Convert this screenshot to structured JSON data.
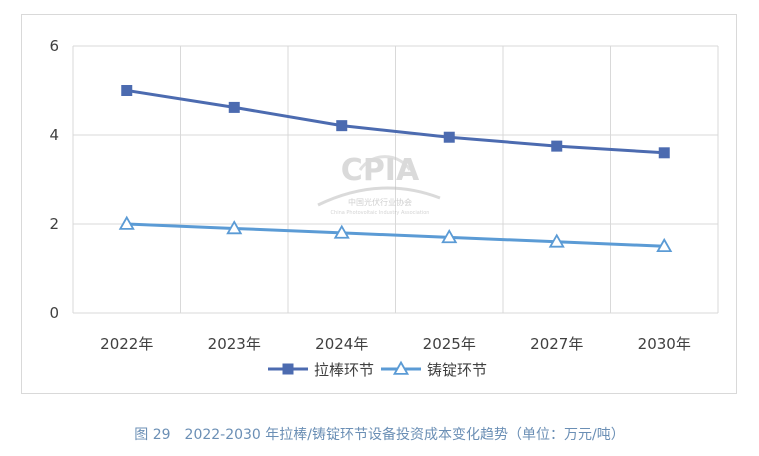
{
  "chart_data": {
    "type": "line",
    "categories": [
      "2022年",
      "2023年",
      "2024年",
      "2025年",
      "2027年",
      "2030年"
    ],
    "series": [
      {
        "name": "拉棒环节",
        "values": [
          5.0,
          4.62,
          4.21,
          3.95,
          3.75,
          3.6
        ],
        "color": "#4c6bb0",
        "marker": "square"
      },
      {
        "name": "铸锭环节",
        "values": [
          2.0,
          1.9,
          1.8,
          1.7,
          1.6,
          1.5
        ],
        "color": "#5b9bd5",
        "marker": "triangle-open"
      }
    ],
    "ylim": [
      0,
      6
    ],
    "yticks": [
      0,
      2,
      4,
      6
    ],
    "grid": true,
    "legend_position": "bottom",
    "title": "",
    "xlabel": "",
    "ylabel": ""
  },
  "watermark": {
    "logo_text": "CPIA",
    "org_name_cn": "中国光伏行业协会",
    "org_name_en": "China Photovoltaic Industry Association"
  },
  "caption": {
    "figure_label": "图 29",
    "text": "2022-2030 年拉棒/铸锭环节设备投资成本变化趋势（单位：万元/吨）"
  }
}
